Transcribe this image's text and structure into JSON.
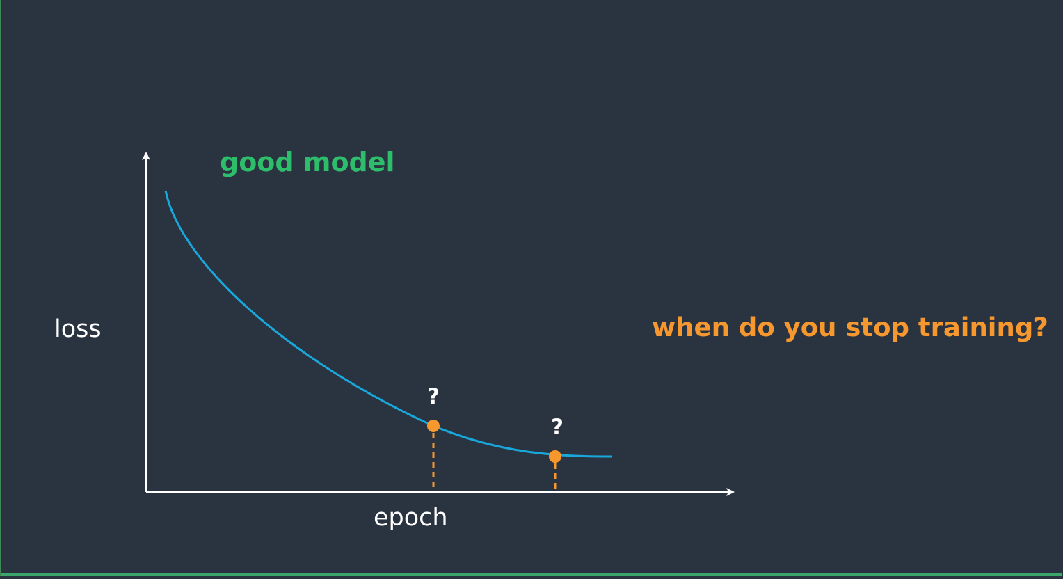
{
  "diagram": {
    "title": "good model",
    "y_axis_label": "loss",
    "x_axis_label": "epoch",
    "question": "when do you stop training?",
    "point_markers": [
      "?",
      "?"
    ]
  },
  "colors": {
    "background": "#2a3441",
    "title": "#2ebd6b",
    "curve": "#18a8dc",
    "points": "#f7982f",
    "question": "#f7982f",
    "axis": "#ffffff"
  }
}
